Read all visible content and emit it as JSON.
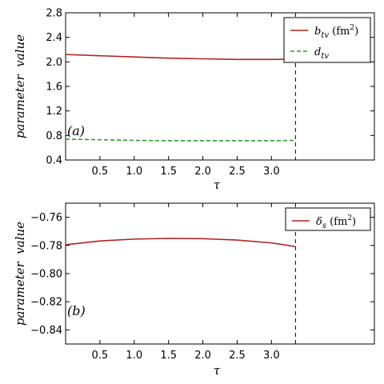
{
  "colors": {
    "red": "#b22222",
    "green": "#2e9e2e",
    "frame": "#000000",
    "vline": "#000000"
  },
  "chart_data": [
    {
      "type": "line",
      "panel_label": "(a)",
      "xlabel": "τ",
      "ylabel": "parameter  value",
      "xlim": [
        0,
        4.5
      ],
      "ylim": [
        0.4,
        2.8
      ],
      "xticks": [
        "0.5",
        "1.0",
        "1.5",
        "2.0",
        "2.5",
        "3.0"
      ],
      "yticks": [
        "0.4",
        "0.8",
        "1.2",
        "1.6",
        "2.0",
        "2.4",
        "2.8"
      ],
      "grid": false,
      "legend_position": "top-right",
      "vline_x": 3.35,
      "series": [
        {
          "name": "b_tv (fm²)",
          "legend_base": "b",
          "legend_sub": "tv",
          "legend_suffix": " (fm",
          "legend_sup": "2",
          "legend_close": ")",
          "style": "solid",
          "color_key": "red",
          "x": [
            0.0,
            0.5,
            1.0,
            1.5,
            2.0,
            2.5,
            3.0,
            3.35
          ],
          "y": [
            2.12,
            2.1,
            2.08,
            2.06,
            2.05,
            2.04,
            2.04,
            2.045
          ]
        },
        {
          "name": "d_tv",
          "legend_base": "d",
          "legend_sub": "tv",
          "legend_suffix": "",
          "legend_sup": "",
          "legend_close": "",
          "style": "dashed",
          "color_key": "green",
          "x": [
            0.0,
            0.5,
            1.0,
            1.5,
            2.0,
            2.5,
            3.0,
            3.35
          ],
          "y": [
            0.74,
            0.73,
            0.72,
            0.715,
            0.715,
            0.715,
            0.715,
            0.72
          ]
        }
      ]
    },
    {
      "type": "line",
      "panel_label": "(b)",
      "xlabel": "τ",
      "ylabel": "parameter  value",
      "xlim": [
        0,
        4.5
      ],
      "ylim": [
        -0.85,
        -0.75
      ],
      "xticks": [
        "0.5",
        "1.0",
        "1.5",
        "2.0",
        "2.5",
        "3.0"
      ],
      "yticks": [
        "−0.84",
        "−0.82",
        "−0.80",
        "−0.78",
        "−0.76"
      ],
      "grid": false,
      "legend_position": "top-right",
      "vline_x": 3.35,
      "series": [
        {
          "name": "δ_s (fm²)",
          "legend_base": "δ",
          "legend_sub": "s",
          "legend_suffix": " (fm",
          "legend_sup": "2",
          "legend_close": ")",
          "style": "solid",
          "color_key": "red",
          "x": [
            0.0,
            0.5,
            1.0,
            1.5,
            2.0,
            2.5,
            3.0,
            3.35
          ],
          "y": [
            -0.7795,
            -0.7768,
            -0.7755,
            -0.775,
            -0.7752,
            -0.7762,
            -0.7782,
            -0.7808
          ]
        }
      ]
    }
  ]
}
